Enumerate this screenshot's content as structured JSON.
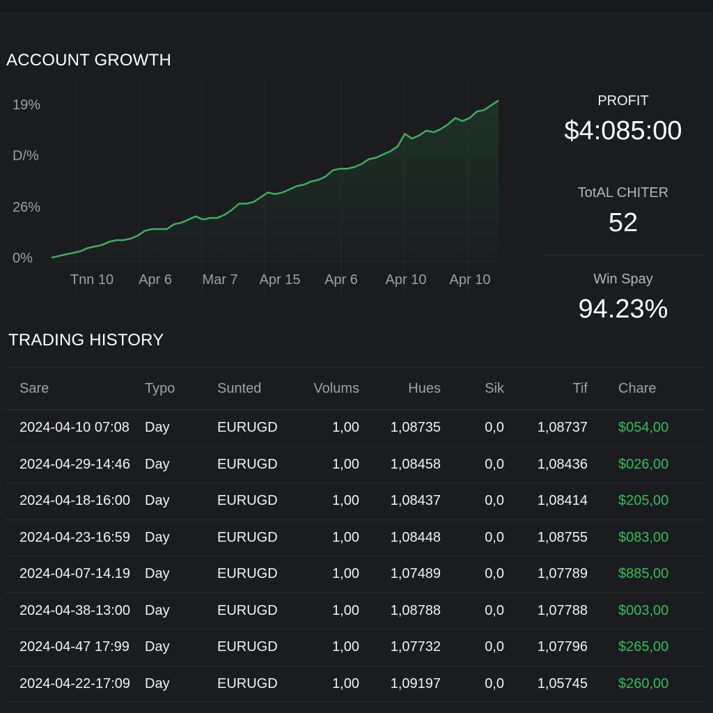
{
  "account_growth": {
    "title": "ACCOUNT GROWTH"
  },
  "chart_data": {
    "type": "area",
    "title": "",
    "xlabel": "",
    "ylabel": "",
    "y_tick_labels": [
      "19%",
      "D/%",
      "26%",
      "0%"
    ],
    "x_tick_labels": [
      "Tnn 10",
      "Apr 6",
      "Mar 7",
      "Apr 15",
      "Apr 6",
      "Apr 10",
      "Apr 10"
    ],
    "ylim": [
      0,
      100
    ],
    "grid": true,
    "line_color": "#3fae5f",
    "fill_color": "#1f3a2a",
    "series": [
      {
        "values": [
          0,
          1,
          2,
          3,
          4,
          6,
          7,
          8,
          10,
          11,
          11,
          12,
          14,
          17,
          18,
          18,
          18,
          21,
          22,
          24,
          26,
          24,
          25,
          25,
          27,
          30,
          34,
          34,
          35,
          38,
          41,
          40,
          41,
          43,
          45,
          46,
          48,
          49,
          51,
          55,
          56,
          56,
          57,
          59,
          62,
          63,
          65,
          67,
          70,
          78,
          75,
          77,
          80,
          79,
          81,
          84,
          88,
          86,
          88,
          92,
          93,
          96,
          99
        ]
      }
    ]
  },
  "stats": {
    "profit_label": "PROFIT",
    "profit_value": "$4:085:00",
    "trades_label": "TotAL CHITER",
    "trades_value": "52",
    "win_label": "Win Spay",
    "win_value": "94.23%"
  },
  "trading_history": {
    "title": "TRADING HISTORY",
    "columns": [
      "Sare",
      "Typo",
      "Sunted",
      "Volums",
      "Hues",
      "Sik",
      "Tif",
      "Chare"
    ],
    "rows": [
      [
        "2024-04-10 07:08",
        "Day",
        "EURUGD",
        "1,00",
        "1,08735",
        "0,0",
        "1,08737",
        "$054,00"
      ],
      [
        "2024-04-29-14:46",
        "Day",
        "EURUGD",
        "1,00",
        "1,08458",
        "0,0",
        "1,08436",
        "$026,00"
      ],
      [
        "2024-04-18-16:00",
        "Day",
        "EURUGD",
        "1,00",
        "1,08437",
        "0,0",
        "1,08414",
        "$205,00"
      ],
      [
        "2024-04-23-16:59",
        "Day",
        "EURUGD",
        "1,00",
        "1,08448",
        "0,0",
        "1,08755",
        "$083,00"
      ],
      [
        "2024-04-07-14.19",
        "Day",
        "EURUGD",
        "1,00",
        "1,07489",
        "0,0",
        "1,07789",
        "$885,00"
      ],
      [
        "2024-04-38-13:00",
        "Day",
        "EURUGD",
        "1,00",
        "1,08788",
        "0,0",
        "1,07788",
        "$003,00"
      ],
      [
        "2024-04-47 17:99",
        "Day",
        "EURUGD",
        "1,00",
        "1,07732",
        "0,0",
        "1,07796",
        "$265,00"
      ],
      [
        "2024-04-22-17:09",
        "Day",
        "EURUGD",
        "1,00",
        "1,09197",
        "0,0",
        "1,05745",
        "$260,00"
      ]
    ]
  }
}
